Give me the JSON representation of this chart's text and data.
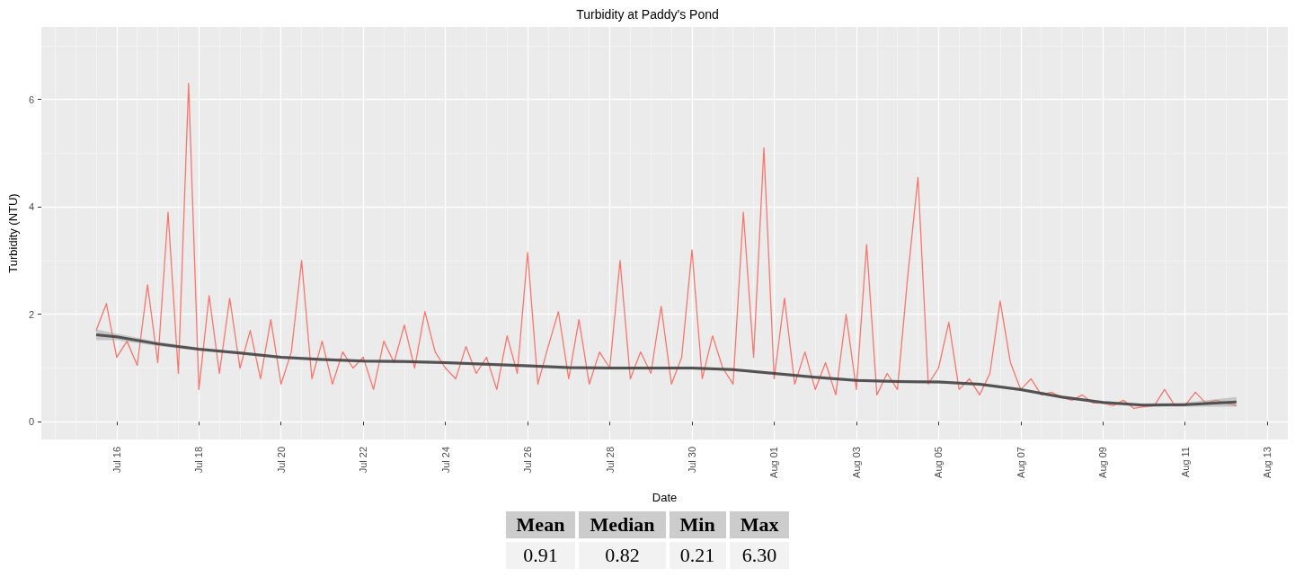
{
  "chart_data": [
    {
      "type": "line",
      "title": "Turbidity at Paddy's Pond",
      "xlabel": "Date",
      "ylabel": "Turbidity (NTU)",
      "grid": true,
      "xlim": [
        "--07-14T04:00",
        "--08-13T12:00"
      ],
      "xticks": [
        {
          "value": "--07-16",
          "label": "Jul 16"
        },
        {
          "value": "--07-18",
          "label": "Jul 18"
        },
        {
          "value": "--07-20",
          "label": "Jul 20"
        },
        {
          "value": "--07-22",
          "label": "Jul 22"
        },
        {
          "value": "--07-24",
          "label": "Jul 24"
        },
        {
          "value": "--07-26",
          "label": "Jul 26"
        },
        {
          "value": "--07-28",
          "label": "Jul 28"
        },
        {
          "value": "--07-30",
          "label": "Jul 30"
        },
        {
          "value": "--08-01",
          "label": "Aug 01"
        },
        {
          "value": "--08-03",
          "label": "Aug 03"
        },
        {
          "value": "--08-05",
          "label": "Aug 05"
        },
        {
          "value": "--08-07",
          "label": "Aug 07"
        },
        {
          "value": "--08-09",
          "label": "Aug 09"
        },
        {
          "value": "--08-11",
          "label": "Aug 11"
        },
        {
          "value": "--08-13",
          "label": "Aug 13"
        },
        {
          "value": "--07-14T12:00",
          "label": null
        },
        {
          "value": "--07-15T00:00",
          "label": null
        },
        {
          "value": "--07-15T12:00",
          "label": null
        },
        {
          "value": "--07-16T12:00",
          "label": null
        },
        {
          "value": "--07-17T00:00",
          "label": null
        },
        {
          "value": "--07-17T12:00",
          "label": null
        },
        {
          "value": "--07-18T12:00",
          "label": null
        },
        {
          "value": "--07-19T00:00",
          "label": null
        },
        {
          "value": "--07-19T12:00",
          "label": null
        },
        {
          "value": "--07-20T12:00",
          "label": null
        },
        {
          "value": "--07-21T00:00",
          "label": null
        },
        {
          "value": "--07-21T12:00",
          "label": null
        },
        {
          "value": "--07-22T12:00",
          "label": null
        },
        {
          "value": "--07-23T00:00",
          "label": null
        },
        {
          "value": "--07-23T12:00",
          "label": null
        },
        {
          "value": "--07-24T12:00",
          "label": null
        },
        {
          "value": "--07-25T00:00",
          "label": null
        },
        {
          "value": "--07-25T12:00",
          "label": null
        },
        {
          "value": "--07-26T12:00",
          "label": null
        },
        {
          "value": "--07-27T00:00",
          "label": null
        },
        {
          "value": "--07-27T12:00",
          "label": null
        },
        {
          "value": "--07-28T12:00",
          "label": null
        },
        {
          "value": "--07-29T00:00",
          "label": null
        },
        {
          "value": "--07-29T12:00",
          "label": null
        },
        {
          "value": "--07-30T12:00",
          "label": null
        },
        {
          "value": "--07-31T00:00",
          "label": null
        },
        {
          "value": "--07-31T12:00",
          "label": null
        },
        {
          "value": "--08-01T12:00",
          "label": null
        },
        {
          "value": "--08-02T00:00",
          "label": null
        },
        {
          "value": "--08-02T12:00",
          "label": null
        },
        {
          "value": "--08-03T12:00",
          "label": null
        },
        {
          "value": "--08-04T00:00",
          "label": null
        },
        {
          "value": "--08-04T12:00",
          "label": null
        },
        {
          "value": "--08-05T12:00",
          "label": null
        },
        {
          "value": "--08-06T00:00",
          "label": null
        },
        {
          "value": "--08-06T12:00",
          "label": null
        },
        {
          "value": "--08-07T12:00",
          "label": null
        },
        {
          "value": "--08-08T00:00",
          "label": null
        },
        {
          "value": "--08-08T12:00",
          "label": null
        },
        {
          "value": "--08-09T12:00",
          "label": null
        },
        {
          "value": "--08-10T00:00",
          "label": null
        },
        {
          "value": "--08-10T12:00",
          "label": null
        },
        {
          "value": "--08-11T12:00",
          "label": null
        },
        {
          "value": "--08-12T00:00",
          "label": null
        },
        {
          "value": "--08-12T12:00",
          "label": null
        }
      ],
      "ylim": [
        -0.33,
        7.35
      ],
      "yticks": [
        0,
        2,
        4,
        6,
        {
          "value": 1,
          "label": null
        },
        {
          "value": 3,
          "label": null
        },
        {
          "value": 5,
          "label": null
        },
        {
          "value": 7,
          "label": null
        }
      ],
      "series": [
        {
          "color": "#f8766d",
          "x": [
            "--07-15T12:00",
            "--07-15T18:00",
            "--07-16T00:00",
            "--07-16T06:00",
            "--07-16T12:00",
            "--07-16T18:00",
            "--07-17T00:00",
            "--07-17T06:00",
            "--07-17T12:00",
            "--07-17T18:00",
            "--07-18T00:00",
            "--07-18T06:00",
            "--07-18T12:00",
            "--07-18T18:00",
            "--07-19T00:00",
            "--07-19T06:00",
            "--07-19T12:00",
            "--07-19T18:00",
            "--07-20T00:00",
            "--07-20T06:00",
            "--07-20T12:00",
            "--07-20T18:00",
            "--07-21T00:00",
            "--07-21T06:00",
            "--07-21T12:00",
            "--07-21T18:00",
            "--07-22T00:00",
            "--07-22T06:00",
            "--07-22T12:00",
            "--07-22T18:00",
            "--07-23T00:00",
            "--07-23T06:00",
            "--07-23T12:00",
            "--07-23T18:00",
            "--07-24T00:00",
            "--07-24T06:00",
            "--07-24T12:00",
            "--07-24T18:00",
            "--07-25T00:00",
            "--07-25T06:00",
            "--07-25T12:00",
            "--07-25T18:00",
            "--07-26T00:00",
            "--07-26T06:00",
            "--07-26T12:00",
            "--07-26T18:00",
            "--07-27T00:00",
            "--07-27T06:00",
            "--07-27T12:00",
            "--07-27T18:00",
            "--07-28T00:00",
            "--07-28T06:00",
            "--07-28T12:00",
            "--07-28T18:00",
            "--07-29T00:00",
            "--07-29T06:00",
            "--07-29T12:00",
            "--07-29T18:00",
            "--07-30T00:00",
            "--07-30T06:00",
            "--07-30T12:00",
            "--07-30T18:00",
            "--07-31T00:00",
            "--07-31T06:00",
            "--07-31T12:00",
            "--07-31T18:00",
            "--08-01T00:00",
            "--08-01T06:00",
            "--08-01T12:00",
            "--08-01T18:00",
            "--08-02T00:00",
            "--08-02T06:00",
            "--08-02T12:00",
            "--08-02T18:00",
            "--08-03T00:00",
            "--08-03T06:00",
            "--08-03T12:00",
            "--08-03T18:00",
            "--08-04T00:00",
            "--08-04T06:00",
            "--08-04T12:00",
            "--08-04T18:00",
            "--08-05T00:00",
            "--08-05T06:00",
            "--08-05T12:00",
            "--08-05T18:00",
            "--08-06T00:00",
            "--08-06T06:00",
            "--08-06T12:00",
            "--08-06T18:00",
            "--08-07T00:00",
            "--08-07T06:00",
            "--08-07T12:00",
            "--08-07T18:00",
            "--08-08T00:00",
            "--08-08T06:00",
            "--08-08T12:00",
            "--08-08T18:00",
            "--08-09T00:00",
            "--08-09T06:00",
            "--08-09T12:00",
            "--08-09T18:00",
            "--08-10T00:00",
            "--08-10T06:00",
            "--08-10T12:00",
            "--08-10T18:00",
            "--08-11T00:00",
            "--08-11T06:00",
            "--08-11T12:00",
            "--08-11T18:00",
            "--08-12T00:00",
            "--08-12T06:00"
          ],
          "values": [
            1.7,
            2.2,
            1.2,
            1.5,
            1.05,
            2.55,
            1.1,
            3.9,
            0.9,
            6.3,
            0.6,
            2.35,
            0.9,
            2.3,
            1.0,
            1.7,
            0.8,
            1.9,
            0.7,
            1.3,
            3.0,
            0.8,
            1.5,
            0.7,
            1.3,
            1.0,
            1.2,
            0.6,
            1.5,
            1.1,
            1.8,
            1.0,
            2.05,
            1.3,
            1.0,
            0.8,
            1.4,
            0.9,
            1.2,
            0.6,
            1.6,
            0.9,
            3.15,
            0.7,
            1.4,
            2.05,
            0.8,
            1.9,
            0.7,
            1.3,
            1.0,
            3.0,
            0.8,
            1.3,
            0.9,
            2.15,
            0.7,
            1.2,
            3.2,
            0.8,
            1.6,
            1.0,
            0.7,
            3.9,
            1.2,
            5.1,
            0.8,
            2.3,
            0.7,
            1.3,
            0.6,
            1.1,
            0.5,
            2.0,
            0.6,
            3.3,
            0.5,
            0.9,
            0.6,
            2.7,
            4.55,
            0.7,
            1.0,
            1.85,
            0.6,
            0.8,
            0.5,
            0.9,
            2.25,
            1.1,
            0.6,
            0.8,
            0.5,
            0.55,
            0.45,
            0.4,
            0.5,
            0.35,
            0.35,
            0.3,
            0.4,
            0.25,
            0.28,
            0.3,
            0.6,
            0.3,
            0.3,
            0.55,
            0.35,
            0.4,
            0.35,
            0.3
          ]
        },
        {
          "type": "line",
          "color": "#3d3d3d",
          "x": [
            "--07-15T12:00",
            "--07-16T00:00",
            "--07-17T00:00",
            "--07-18T00:00",
            "--07-19T00:00",
            "--07-20T00:00",
            "--07-21T00:00",
            "--07-22T00:00",
            "--07-23T00:00",
            "--07-24T00:00",
            "--07-25T00:00",
            "--07-26T00:00",
            "--07-27T00:00",
            "--07-28T00:00",
            "--07-29T00:00",
            "--07-30T00:00",
            "--07-31T00:00",
            "--08-01T00:00",
            "--08-02T00:00",
            "--08-03T00:00",
            "--08-04T00:00",
            "--08-05T00:00",
            "--08-06T00:00",
            "--08-07T00:00",
            "--08-08T00:00",
            "--08-09T00:00",
            "--08-10T00:00",
            "--08-11T00:00",
            "--08-12T06:00"
          ],
          "values": [
            1.62,
            1.58,
            1.45,
            1.35,
            1.28,
            1.2,
            1.16,
            1.13,
            1.12,
            1.1,
            1.07,
            1.04,
            1.01,
            1.0,
            1.0,
            1.0,
            0.97,
            0.9,
            0.83,
            0.77,
            0.75,
            0.74,
            0.7,
            0.6,
            0.46,
            0.36,
            0.31,
            0.32,
            0.37
          ],
          "lower": [
            1.52,
            1.52,
            1.41,
            1.32,
            1.25,
            1.17,
            1.13,
            1.1,
            1.09,
            1.07,
            1.04,
            1.01,
            0.98,
            0.97,
            0.97,
            0.97,
            0.94,
            0.87,
            0.8,
            0.74,
            0.72,
            0.71,
            0.67,
            0.57,
            0.43,
            0.33,
            0.28,
            0.28,
            0.28
          ],
          "upper": [
            1.72,
            1.64,
            1.49,
            1.38,
            1.31,
            1.23,
            1.19,
            1.16,
            1.15,
            1.13,
            1.1,
            1.07,
            1.04,
            1.03,
            1.03,
            1.03,
            1.0,
            0.93,
            0.86,
            0.8,
            0.78,
            0.77,
            0.73,
            0.63,
            0.49,
            0.39,
            0.34,
            0.36,
            0.46
          ]
        }
      ]
    },
    {
      "type": "other",
      "categories": [
        "Mean",
        "Median",
        "Min",
        "Max"
      ],
      "value_labels": [
        "0.91",
        "0.82",
        "0.21",
        "6.30"
      ]
    }
  ]
}
